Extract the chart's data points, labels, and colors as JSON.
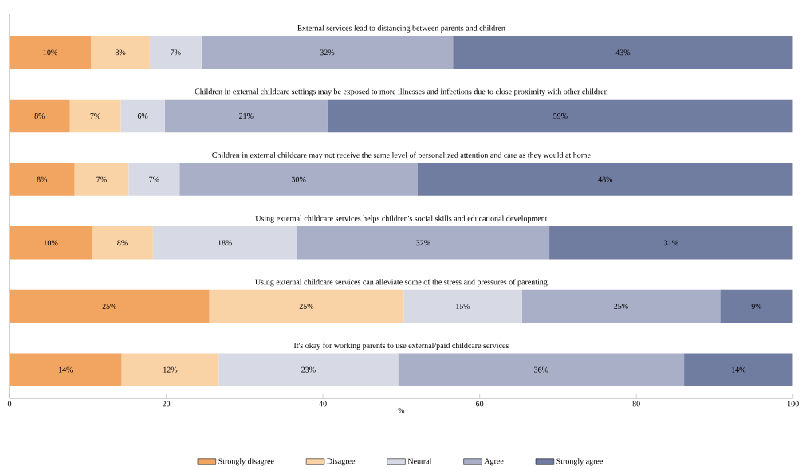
{
  "chart_data": {
    "type": "bar",
    "orientation": "horizontal",
    "stacked": true,
    "categories": [
      "External services lead to distancing between parents and children",
      "Children in external childcare settings may be exposed to more illnesses and infections due to close proximity with other children",
      "Children in external childcare may not receive the same level of personalized attention and care as they would at home",
      "Using external childcare services helps children's social skills and educational development",
      "Using external childcare services can alleviate some of the stress and pressures of parenting",
      "It's okay for working parents to use external/paid childcare services"
    ],
    "series": [
      {
        "name": "Strongly disagree",
        "color": "#f2a560",
        "values": [
          10.4,
          7.7,
          8.3,
          10.5,
          25.5,
          14.3
        ],
        "value_labels": [
          "10%",
          "8%",
          "8%",
          "10%",
          "25%",
          "14%"
        ]
      },
      {
        "name": "Disagree",
        "color": "#f9d2a6",
        "values": [
          7.5,
          6.5,
          6.9,
          7.8,
          24.8,
          12.4
        ],
        "value_labels": [
          "8%",
          "7%",
          "7%",
          "8%",
          "25%",
          "12%"
        ]
      },
      {
        "name": "Neutral",
        "color": "#d7dae4",
        "values": [
          6.6,
          5.6,
          6.5,
          18.4,
          15.1,
          22.9
        ],
        "value_labels": [
          "7%",
          "6%",
          "7%",
          "18%",
          "15%",
          "23%"
        ]
      },
      {
        "name": "Agree",
        "color": "#a9afc7",
        "values": [
          32.1,
          20.8,
          30.4,
          32.2,
          25.3,
          36.5
        ],
        "value_labels": [
          "32%",
          "21%",
          "30%",
          "32%",
          "25%",
          "36%"
        ]
      },
      {
        "name": "Strongly agree",
        "color": "#707ca0",
        "values": [
          43.4,
          59.4,
          47.9,
          31.1,
          9.3,
          13.9
        ],
        "value_labels": [
          "43%",
          "59%",
          "48%",
          "31%",
          "9%",
          "14%"
        ]
      }
    ],
    "xlim": [
      0,
      100
    ],
    "xticks": [
      0,
      20,
      40,
      60,
      80,
      100
    ],
    "xlabel": "%",
    "legend": "bottom",
    "grid": false
  }
}
